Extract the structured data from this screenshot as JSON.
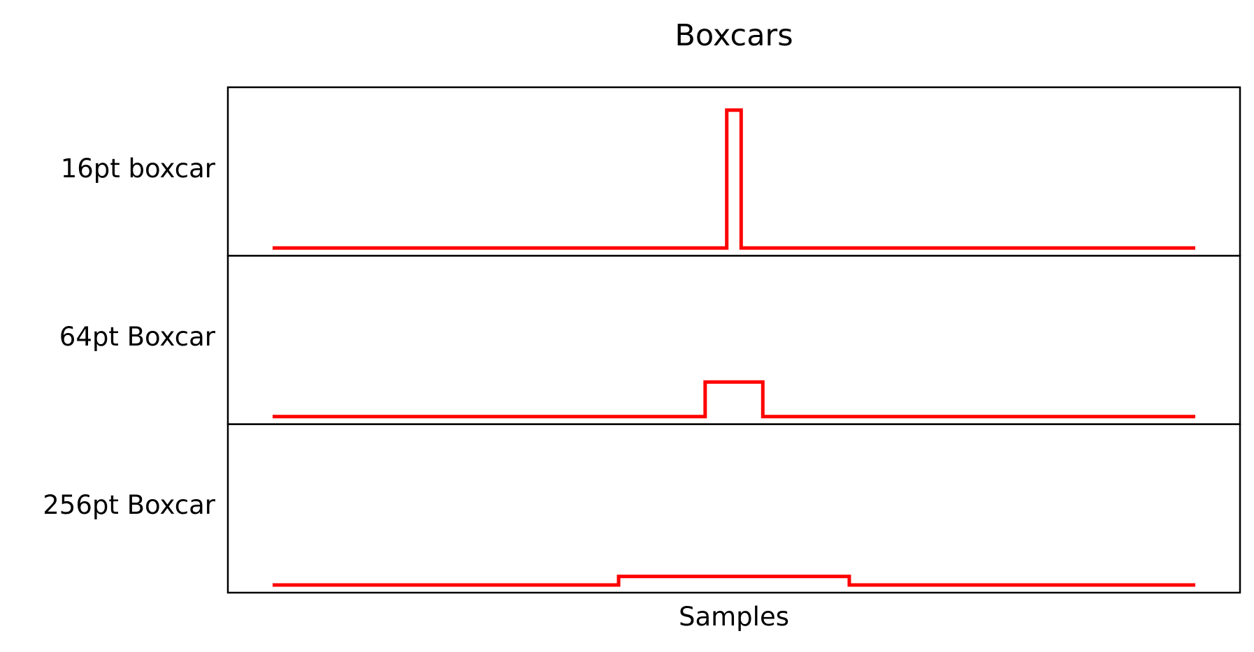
{
  "chart_data": {
    "type": "line",
    "title": "Boxcars",
    "xlabel": "Samples",
    "color": "#ff0000",
    "grid": false,
    "xlim": [
      0,
      1024
    ],
    "panels": [
      {
        "ylabel": "16pt boxcar",
        "ylim": [
          0,
          0.0694
        ],
        "series": {
          "x": [
            0,
            504,
            504,
            520,
            520,
            1024
          ],
          "y": [
            0,
            0,
            0.0625,
            0.0625,
            0,
            0
          ]
        }
      },
      {
        "ylabel": "64pt Boxcar",
        "ylim": [
          0,
          0.0694
        ],
        "series": {
          "x": [
            0,
            480,
            480,
            544,
            544,
            1024
          ],
          "y": [
            0,
            0,
            0.015625,
            0.015625,
            0,
            0
          ]
        }
      },
      {
        "ylabel": "256pt Boxcar",
        "ylim": [
          0,
          0.0694
        ],
        "series": {
          "x": [
            0,
            384,
            384,
            640,
            640,
            1024
          ],
          "y": [
            0,
            0,
            0.00390625,
            0.00390625,
            0,
            0
          ]
        }
      }
    ]
  }
}
